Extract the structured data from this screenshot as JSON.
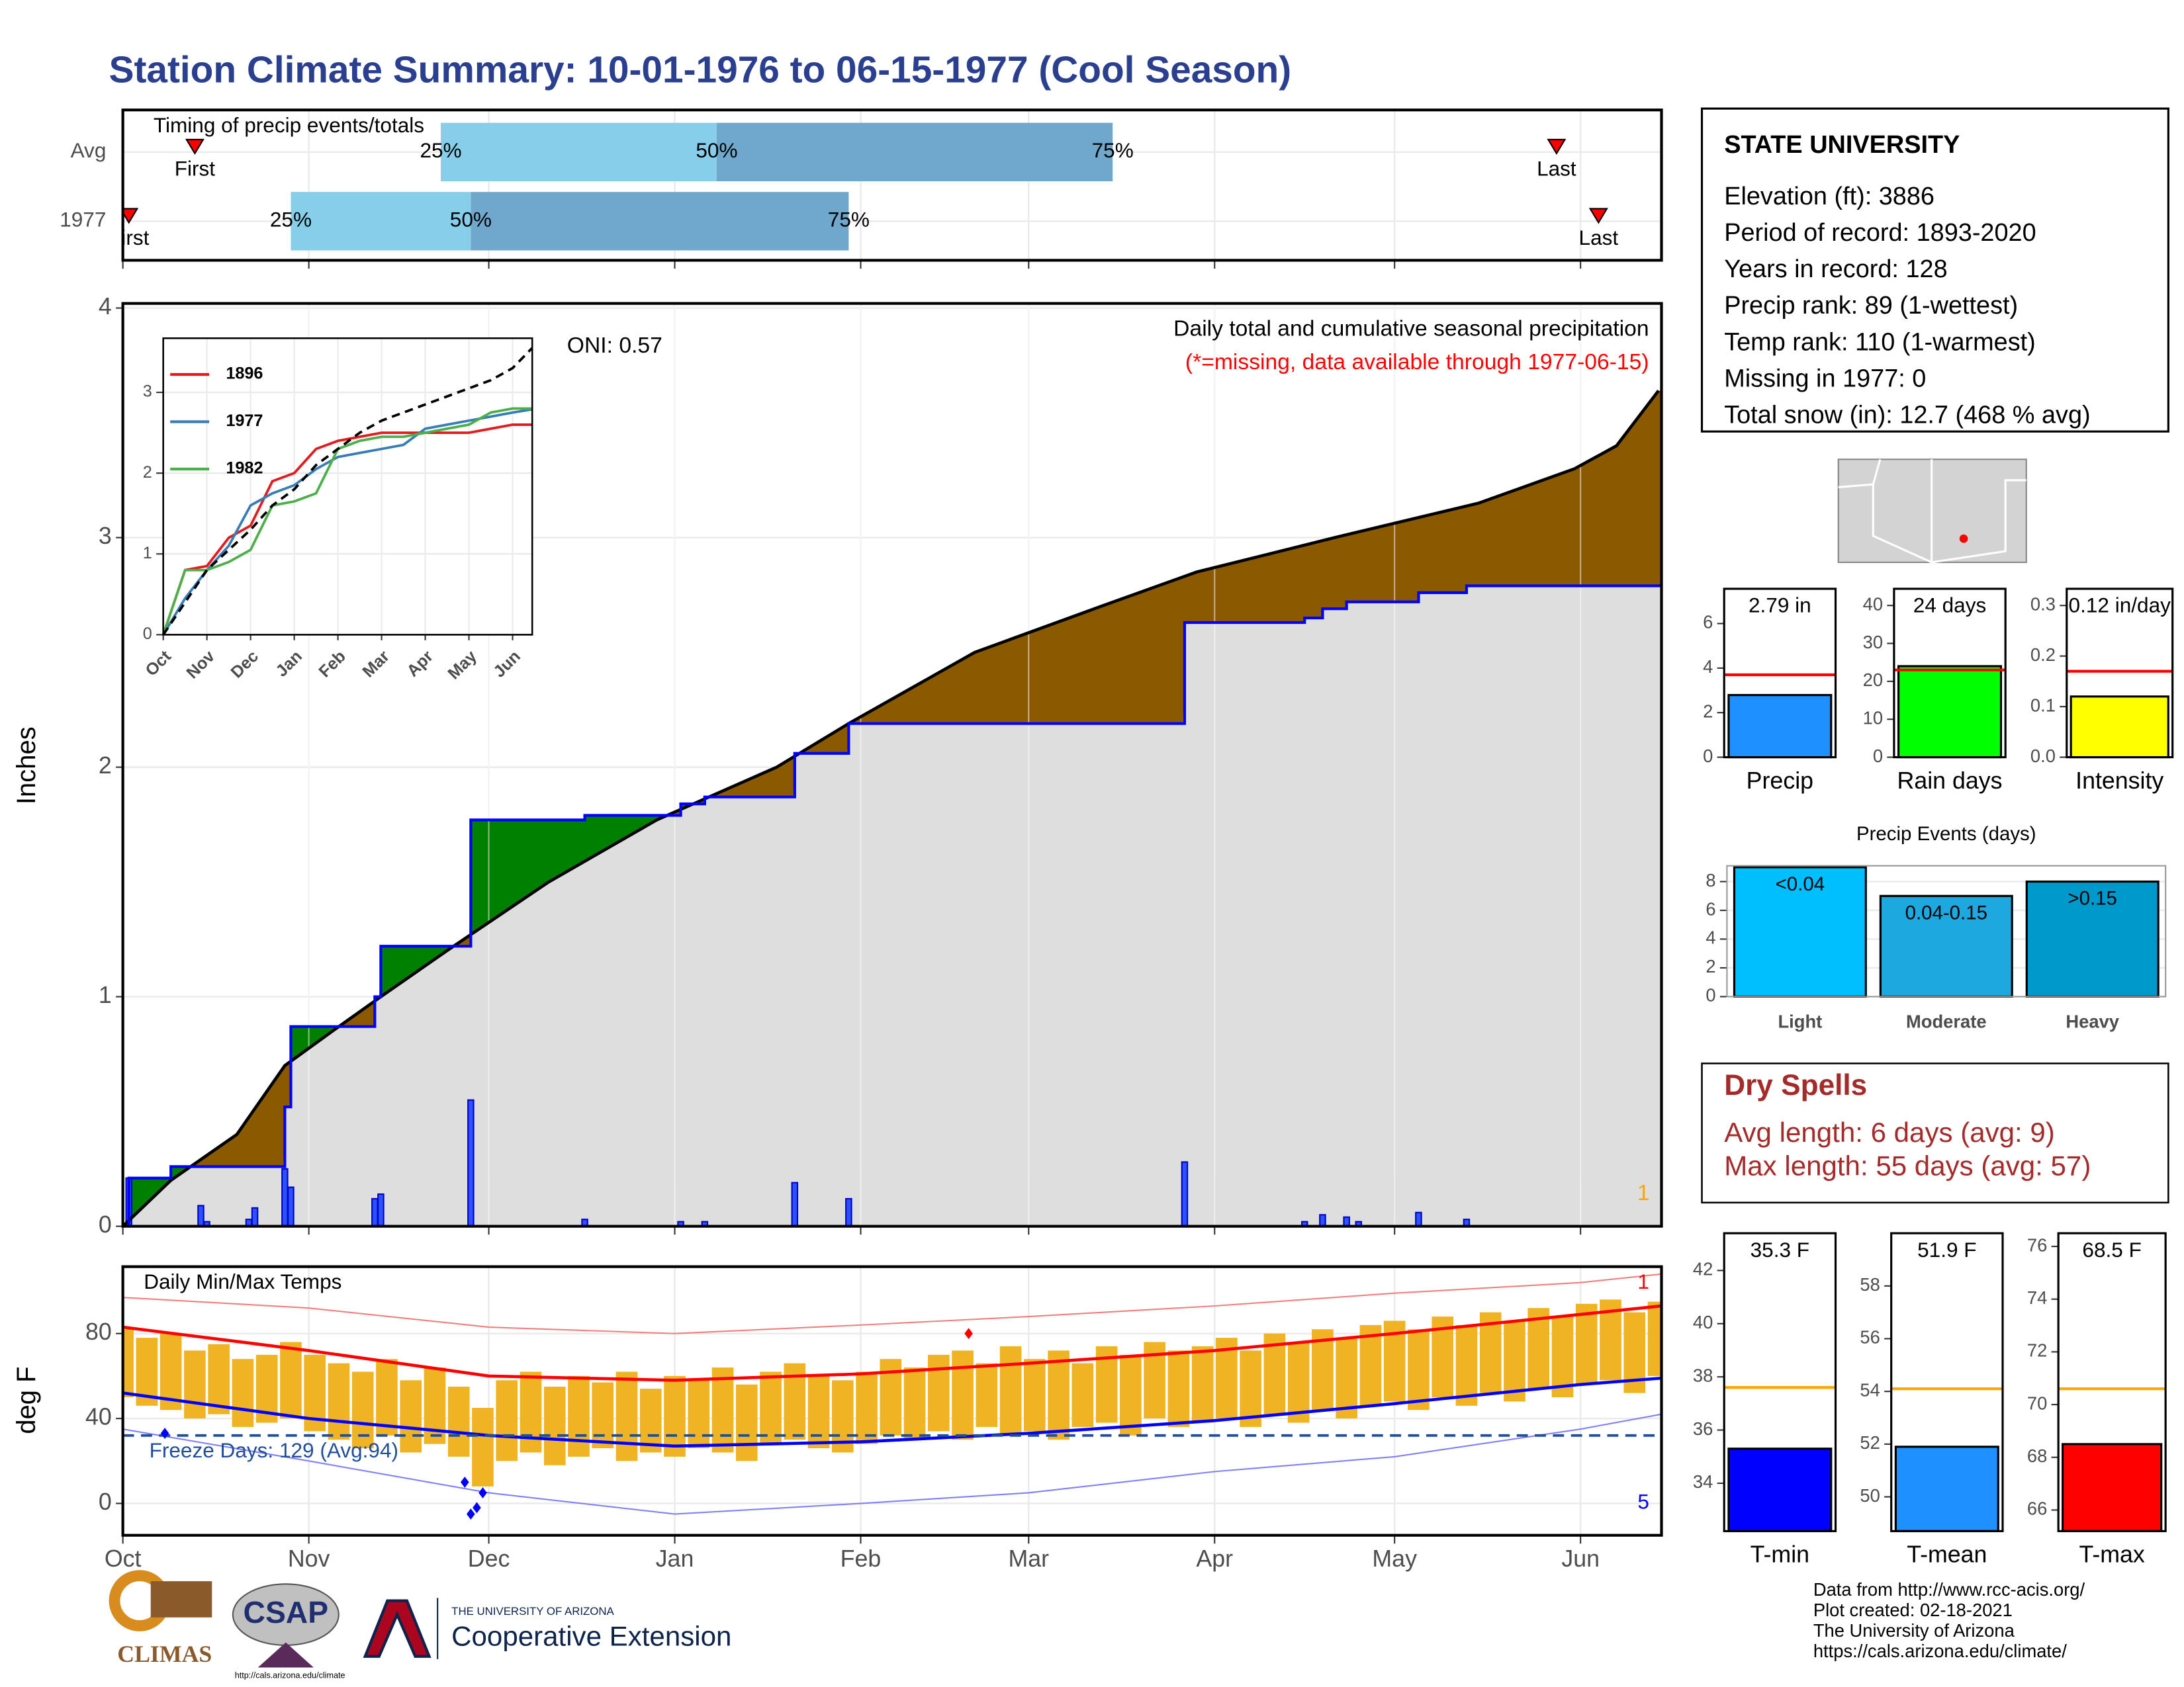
{
  "title": "Station Climate Summary: 10-01-1976 to 06-15-1977 (Cool Season)",
  "station": {
    "name": "STATE UNIVERSITY",
    "lines": [
      "Elevation (ft): 3886",
      "Period of record: 1893-2020",
      "Years in record: 128",
      "Precip rank: 89 (1-wettest)",
      "Temp rank: 110 (1-warmest)",
      "Missing in 1977: 0",
      "Total snow (in): 12.7 (468 % avg)"
    ]
  },
  "dry_spells": {
    "title": "Dry Spells",
    "lines": [
      "Avg length: 6 days (avg: 9)",
      "Max length: 55 days (avg: 57)"
    ]
  },
  "footer": [
    "Data from http://www.rcc-acis.org/",
    "Plot created: 02-18-2021",
    "The University of Arizona",
    "https://cals.arizona.edu/climate/"
  ],
  "logos": {
    "climas": "CLIMAS",
    "csap": "CSAP",
    "csap_url": "http://cals.arizona.edu/climate",
    "ua": "THE UNIVERSITY OF ARIZONA",
    "coop": "Cooperative Extension"
  },
  "chart_data": [
    {
      "type": "timeline",
      "title": "Timing of precip events/totals",
      "categories": [
        "Avg",
        "1977"
      ],
      "first": [
        12,
        1
      ],
      "q25": [
        53,
        28
      ],
      "q50": [
        99,
        58
      ],
      "q75": [
        165,
        121
      ],
      "last": [
        239,
        246
      ],
      "labels": {
        "first": "First",
        "q25": "25%",
        "q50": "50%",
        "q75": "75%",
        "last": "Last"
      },
      "colors": [
        "#87ceeb",
        "#6fa8cc"
      ],
      "marker_color": "#ff0000",
      "xlim": [
        0,
        256.5
      ],
      "xticks": [
        0,
        31,
        61,
        92,
        123,
        151,
        182,
        212,
        243
      ]
    },
    {
      "type": "cumulative",
      "title": "Daily total and cumulative seasonal precipitation",
      "note": "(*=missing, data available through 1977-06-15)",
      "oni": "ONI: 0.57",
      "y_label": "Inches",
      "corner_label": "1",
      "cum_x": [
        0,
        1,
        8,
        27,
        28,
        42,
        43,
        58,
        77,
        93,
        97,
        112,
        121,
        177,
        197,
        200,
        204,
        216,
        224
      ],
      "cum_values": [
        0,
        0.21,
        0.26,
        0.52,
        0.87,
        1.0,
        1.22,
        1.77,
        1.79,
        1.84,
        1.87,
        2.06,
        2.19,
        2.63,
        2.65,
        2.69,
        2.72,
        2.76,
        2.79
      ],
      "avg_x": [
        0,
        8,
        19,
        27,
        36,
        43,
        54,
        71,
        89,
        109,
        121,
        142,
        163,
        179,
        202,
        226,
        242,
        249,
        256
      ],
      "avg_values": [
        0,
        0.2,
        0.4,
        0.7,
        0.87,
        1.0,
        1.2,
        1.5,
        1.77,
        2.0,
        2.19,
        2.5,
        2.7,
        2.85,
        3.0,
        3.15,
        3.3,
        3.4,
        3.64
      ],
      "daily_x": [
        1,
        13,
        14,
        21,
        22,
        27,
        28,
        42,
        43,
        58,
        77,
        93,
        97,
        112,
        121,
        177,
        197,
        200,
        204,
        206,
        216,
        224
      ],
      "daily_values": [
        0.21,
        0.09,
        0.02,
        0.03,
        0.08,
        0.25,
        0.17,
        0.12,
        0.14,
        0.55,
        0.03,
        0.02,
        0.02,
        0.19,
        0.12,
        0.28,
        0.02,
        0.05,
        0.04,
        0.02,
        0.06,
        0.03
      ],
      "colors": {
        "above": "#008000",
        "below": "#8b5a00",
        "base": "#dedede",
        "observed": "#0000ff",
        "average": "#000000",
        "daily": "#2a52ff",
        "note": "#ff0000",
        "corner": "#ffa500"
      },
      "xlim": [
        0,
        256.5
      ],
      "xticks": [
        0,
        31,
        61,
        92,
        123,
        151,
        182,
        212,
        243
      ],
      "ylim": [
        0,
        4.02
      ],
      "yticks": [
        0,
        1,
        2,
        3,
        4
      ],
      "grid": true
    },
    {
      "type": "line",
      "x": [
        0,
        0.5,
        1,
        1.5,
        2,
        2.5,
        3,
        3.5,
        4,
        4.5,
        5,
        5.5,
        6,
        6.5,
        7,
        7.5,
        8,
        8.45
      ],
      "series": [
        {
          "name": "1896",
          "color": "#e41a1c",
          "values": [
            0,
            0.8,
            0.85,
            1.2,
            1.35,
            1.9,
            2.0,
            2.3,
            2.4,
            2.45,
            2.5,
            2.5,
            2.5,
            2.5,
            2.5,
            2.55,
            2.6,
            2.6
          ]
        },
        {
          "name": "1977",
          "color": "#377eb8",
          "values": [
            0,
            0.45,
            0.8,
            1.1,
            1.6,
            1.75,
            1.85,
            2.05,
            2.2,
            2.25,
            2.3,
            2.35,
            2.55,
            2.6,
            2.65,
            2.7,
            2.75,
            2.79
          ]
        },
        {
          "name": "1982",
          "color": "#4daf4a",
          "values": [
            0,
            0.8,
            0.8,
            0.9,
            1.05,
            1.6,
            1.65,
            1.75,
            2.3,
            2.4,
            2.45,
            2.45,
            2.5,
            2.55,
            2.6,
            2.75,
            2.8,
            2.8
          ]
        }
      ],
      "average_values": [
        0,
        0.4,
        0.8,
        1.05,
        1.3,
        1.6,
        1.8,
        2.1,
        2.3,
        2.5,
        2.65,
        2.75,
        2.85,
        2.95,
        3.05,
        3.15,
        3.3,
        3.55
      ],
      "average_color": "#000000",
      "xlim": [
        0,
        8.45
      ],
      "ylim": [
        0,
        3.67
      ],
      "yticks": [
        0,
        1,
        2,
        3
      ],
      "xticks": [
        {
          "value": 0,
          "label": "Oct"
        },
        {
          "value": 1,
          "label": "Nov"
        },
        {
          "value": 2,
          "label": "Dec"
        },
        {
          "value": 3,
          "label": "Jan"
        },
        {
          "value": 4,
          "label": "Feb"
        },
        {
          "value": 5,
          "label": "Mar"
        },
        {
          "value": 6,
          "label": "Apr"
        },
        {
          "value": 7,
          "label": "May"
        },
        {
          "value": 8,
          "label": "Jun"
        }
      ],
      "grid": true
    },
    {
      "type": "temperature",
      "title": "Daily Min/Max Temps",
      "y_label": "deg F",
      "freeze_label": "Freeze Days: 129 (Avg:94)",
      "high_note": "1",
      "low_note": "5",
      "x": [
        0,
        4,
        8,
        12,
        16,
        20,
        24,
        28,
        32,
        36,
        40,
        44,
        48,
        52,
        56,
        60,
        64,
        68,
        72,
        76,
        80,
        84,
        88,
        92,
        96,
        100,
        104,
        108,
        112,
        116,
        120,
        124,
        128,
        132,
        136,
        140,
        144,
        148,
        152,
        156,
        160,
        164,
        168,
        172,
        176,
        180,
        184,
        188,
        192,
        196,
        200,
        204,
        208,
        212,
        216,
        220,
        224,
        228,
        232,
        236,
        240,
        244,
        248,
        252,
        256
      ],
      "max": [
        82,
        78,
        80,
        72,
        75,
        68,
        70,
        76,
        70,
        66,
        62,
        68,
        58,
        64,
        55,
        45,
        58,
        62,
        55,
        60,
        57,
        62,
        54,
        60,
        58,
        64,
        56,
        62,
        66,
        60,
        58,
        62,
        68,
        64,
        70,
        72,
        66,
        74,
        68,
        72,
        66,
        74,
        70,
        76,
        72,
        74,
        78,
        72,
        80,
        76,
        82,
        78,
        84,
        86,
        82,
        88,
        84,
        90,
        86,
        92,
        88,
        94,
        96,
        90,
        95
      ],
      "min": [
        50,
        46,
        44,
        40,
        42,
        36,
        38,
        40,
        34,
        30,
        26,
        32,
        24,
        28,
        22,
        8,
        20,
        24,
        18,
        22,
        26,
        20,
        24,
        22,
        26,
        24,
        20,
        28,
        30,
        26,
        24,
        28,
        32,
        30,
        34,
        30,
        36,
        32,
        34,
        30,
        36,
        38,
        32,
        40,
        36,
        38,
        40,
        36,
        42,
        38,
        44,
        40,
        46,
        48,
        44,
        50,
        46,
        52,
        48,
        54,
        50,
        56,
        58,
        52,
        60
      ],
      "normal_x": [
        0,
        31,
        61,
        92,
        123,
        151,
        182,
        212,
        243,
        256.5
      ],
      "normal_max": [
        83,
        72,
        60,
        58,
        61,
        66,
        72,
        80,
        89,
        93
      ],
      "normal_min": [
        52,
        40,
        32,
        27,
        29,
        33,
        39,
        47,
        56,
        59
      ],
      "record_max": [
        97,
        92,
        83,
        80,
        84,
        88,
        93,
        99,
        104,
        108
      ],
      "record_min": [
        35,
        20,
        5,
        -5,
        0,
        5,
        15,
        22,
        35,
        42
      ],
      "freeze_line": 32,
      "record_low_x": [
        7,
        57,
        58,
        59,
        60
      ],
      "record_low_values": [
        33,
        10,
        -5,
        -2,
        5
      ],
      "record_high_x": [
        141
      ],
      "record_high_values": [
        80
      ],
      "colors": {
        "bars": "#f0b323",
        "normal_max": "#ff0000",
        "normal_min": "#0000ff",
        "record_max": "#f08080",
        "record_min": "#8080ff",
        "freeze": "#1f4e9a",
        "high_note": "#ff0000",
        "low_note": "#0000ff"
      },
      "xlim": [
        0,
        256.5
      ],
      "ylim": [
        -15,
        111.5
      ],
      "yticks": [
        0,
        40,
        80
      ],
      "xticks": [
        {
          "value": 0,
          "label": "Oct"
        },
        {
          "value": 31,
          "label": "Nov"
        },
        {
          "value": 61,
          "label": "Dec"
        },
        {
          "value": 92,
          "label": "Jan"
        },
        {
          "value": 123,
          "label": "Feb"
        },
        {
          "value": 151,
          "label": "Mar"
        },
        {
          "value": 182,
          "label": "Apr"
        },
        {
          "value": 212,
          "label": "May"
        },
        {
          "value": 243,
          "label": "Jun"
        }
      ],
      "grid": true
    },
    {
      "type": "bar",
      "categories": [
        "Precip"
      ],
      "values": [
        2.79
      ],
      "value_labels": [
        "2.79 in"
      ],
      "color": "#1e90ff",
      "average": 3.7,
      "average_color": "#ff0000",
      "ylim": [
        0,
        7.56
      ],
      "yticks": [
        0,
        2,
        4,
        6
      ]
    },
    {
      "type": "bar",
      "categories": [
        "Rain days"
      ],
      "values": [
        24
      ],
      "value_labels": [
        "24 days"
      ],
      "color": "#00ff00",
      "average": 23,
      "average_color": "#ff0000",
      "ylim": [
        0,
        44.4
      ],
      "yticks": [
        0,
        10,
        20,
        30,
        40
      ]
    },
    {
      "type": "bar",
      "categories": [
        "Intensity"
      ],
      "values": [
        0.12
      ],
      "value_labels": [
        "0.12 in/day"
      ],
      "color": "#ffff00",
      "average": 0.17,
      "average_color": "#ff0000",
      "ylim": [
        0,
        0.333
      ],
      "yticks": [
        {
          "value": 0,
          "label": "0.0"
        },
        0.1,
        0.2,
        0.3
      ]
    },
    {
      "type": "bar",
      "title": "Precip Events (days)",
      "categories": [
        "Light",
        "Moderate",
        "Heavy"
      ],
      "values": [
        9,
        7,
        8
      ],
      "bar_labels": [
        "<0.04",
        "0.04-0.15",
        ">0.15"
      ],
      "colors": [
        "#00bfff",
        "#1ea8e0",
        "#0099cc"
      ],
      "ylim": [
        0,
        9.1
      ],
      "yticks": [
        0,
        2,
        4,
        6,
        8
      ],
      "grid": true
    },
    {
      "type": "bar",
      "categories": [
        "T-min"
      ],
      "values": [
        35.3
      ],
      "value_labels": [
        "35.3 F"
      ],
      "color": "#0000ff",
      "average": 37.6,
      "average_color": "#ffa500",
      "ylim": [
        32.2,
        43.4
      ],
      "yticks": [
        34,
        36,
        38,
        40,
        42
      ]
    },
    {
      "type": "bar",
      "categories": [
        "T-mean"
      ],
      "values": [
        51.9
      ],
      "value_labels": [
        "51.9 F"
      ],
      "color": "#1e90ff",
      "average": 54.1,
      "average_color": "#ffa500",
      "ylim": [
        48.7,
        60
      ],
      "yticks": [
        50,
        52,
        54,
        56,
        58
      ]
    },
    {
      "type": "bar",
      "categories": [
        "T-max"
      ],
      "values": [
        68.5
      ],
      "value_labels": [
        "68.5 F"
      ],
      "color": "#ff0000",
      "average": 70.6,
      "average_color": "#ffa500",
      "ylim": [
        65.2,
        76.5
      ],
      "yticks": [
        66,
        68,
        70,
        72,
        74,
        76
      ]
    }
  ]
}
